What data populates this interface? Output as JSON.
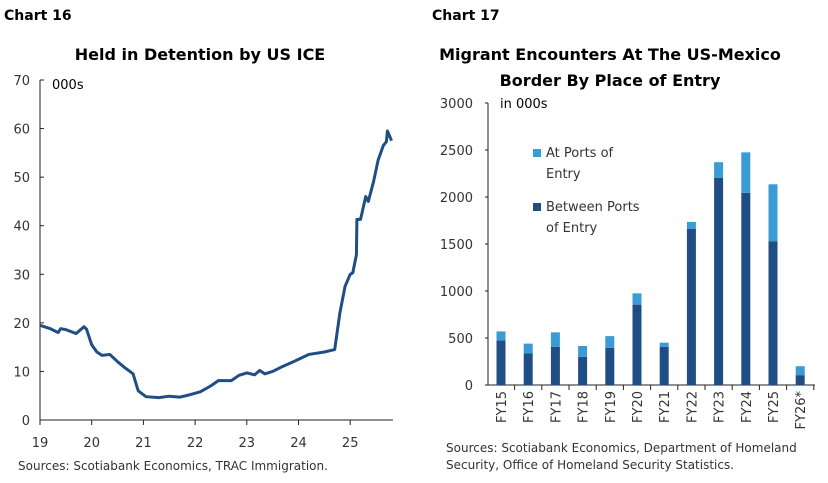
{
  "chart_data": [
    {
      "label": "Chart 16",
      "type": "line",
      "title": "Held in Detention by US ICE",
      "unit": "000s",
      "source": "Sources: Scotiabank Economics, TRAC Immigration.",
      "xlim": [
        19,
        25.8
      ],
      "ylim": [
        0,
        70
      ],
      "xticks": [
        "19",
        "20",
        "21",
        "22",
        "23",
        "24",
        "25"
      ],
      "yticks": [
        "0",
        "10",
        "20",
        "30",
        "40",
        "50",
        "60",
        "70"
      ],
      "color": "#1f4e85",
      "grid": false,
      "points": [
        [
          19.0,
          19.5
        ],
        [
          19.2,
          18.8
        ],
        [
          19.35,
          18
        ],
        [
          19.4,
          18.8
        ],
        [
          19.5,
          18.6
        ],
        [
          19.7,
          17.8
        ],
        [
          19.85,
          19.2
        ],
        [
          19.9,
          18.7
        ],
        [
          20.0,
          15.5
        ],
        [
          20.1,
          14
        ],
        [
          20.2,
          13.3
        ],
        [
          20.35,
          13.5
        ],
        [
          20.5,
          12
        ],
        [
          20.65,
          10.7
        ],
        [
          20.8,
          9.5
        ],
        [
          20.9,
          6
        ],
        [
          21.05,
          4.8
        ],
        [
          21.3,
          4.6
        ],
        [
          21.5,
          4.9
        ],
        [
          21.7,
          4.7
        ],
        [
          21.9,
          5.2
        ],
        [
          22.1,
          5.8
        ],
        [
          22.3,
          7
        ],
        [
          22.45,
          8.1
        ],
        [
          22.7,
          8.1
        ],
        [
          22.85,
          9.2
        ],
        [
          23.0,
          9.7
        ],
        [
          23.15,
          9.3
        ],
        [
          23.25,
          10.2
        ],
        [
          23.35,
          9.5
        ],
        [
          23.5,
          10
        ],
        [
          23.65,
          10.8
        ],
        [
          23.9,
          12
        ],
        [
          24.1,
          13
        ],
        [
          24.2,
          13.5
        ],
        [
          24.5,
          14
        ],
        [
          24.7,
          14.5
        ],
        [
          24.8,
          22
        ],
        [
          24.9,
          27.5
        ],
        [
          25.0,
          30
        ],
        [
          25.05,
          30.3
        ],
        [
          25.12,
          34
        ],
        [
          25.13,
          41.3
        ],
        [
          25.2,
          41.3
        ],
        [
          25.3,
          46
        ],
        [
          25.35,
          45
        ],
        [
          25.45,
          49
        ],
        [
          25.54,
          53.5
        ],
        [
          25.64,
          56.5
        ],
        [
          25.7,
          57.3
        ],
        [
          25.72,
          59.5
        ],
        [
          25.8,
          57.5
        ]
      ]
    },
    {
      "label": "Chart 17",
      "type": "bar",
      "stacked": true,
      "title": "Migrant Encounters At The US-Mexico Border By Place of Entry",
      "unit": "in 000s",
      "source_lines": [
        "Sources: Scotiabank Economics, Department of Homeland",
        "Security, Office of Homeland Security Statistics."
      ],
      "ylim": [
        0,
        3000
      ],
      "yticks": [
        "0",
        "500",
        "1000",
        "1500",
        "2000",
        "2500",
        "3000"
      ],
      "categories": [
        "FY15",
        "FY16",
        "FY17",
        "FY18",
        "FY19",
        "FY20",
        "FY21",
        "FY22",
        "FY23",
        "FY24",
        "FY25",
        "FY26*"
      ],
      "legend_position": "top-left",
      "series": [
        {
          "name": "Between Ports of Entry",
          "color": "#1f4e85",
          "values": [
            475,
            335,
            405,
            300,
            395,
            855,
            405,
            1660,
            2205,
            2045,
            1530,
            105
          ]
        },
        {
          "name": "At Ports of Entry",
          "color": "#3a9bd5",
          "values": [
            95,
            105,
            155,
            115,
            125,
            120,
            45,
            75,
            165,
            430,
            605,
            95
          ]
        }
      ]
    }
  ]
}
